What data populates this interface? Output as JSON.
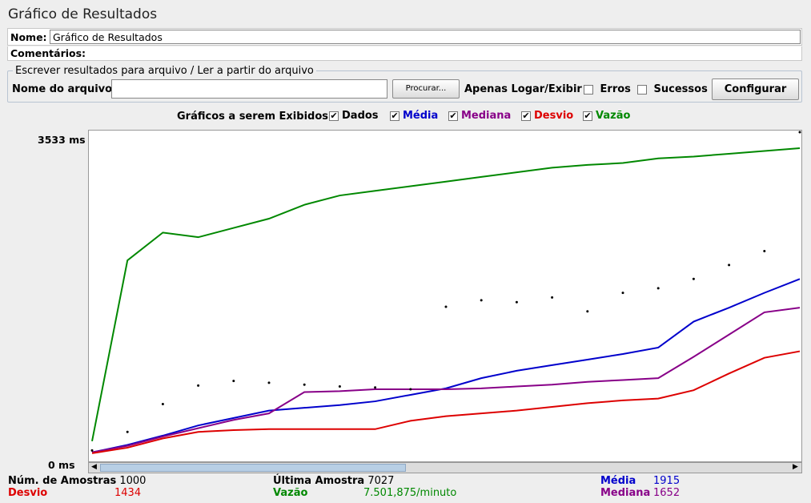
{
  "window": {
    "title": "Gráfico de Resultados"
  },
  "name_row": {
    "label": "Nome:",
    "value": "Gráfico de Resultados"
  },
  "comments_row": {
    "label": "Comentários:"
  },
  "file_section": {
    "legend": "Escrever resultados para arquivo / Ler a partir do arquivo",
    "filename_label": "Nome do arquivo",
    "filename_value": "",
    "browse_button": "Procurar...",
    "log_only_label": "Apenas Logar/Exibir",
    "errors_label": "Erros",
    "success_label": "Sucessos",
    "configure_button": "Configurar"
  },
  "graphs": {
    "label": "Gráficos a serem Exibidos",
    "options": [
      {
        "label": "Dados",
        "checked": true,
        "color": "#000000"
      },
      {
        "label": "Média",
        "checked": true,
        "color": "#0000cc"
      },
      {
        "label": "Mediana",
        "checked": true,
        "color": "#880088"
      },
      {
        "label": "Desvio",
        "checked": true,
        "color": "#dd0000"
      },
      {
        "label": "Vazão",
        "checked": true,
        "color": "#008800"
      }
    ]
  },
  "chart_data": {
    "type": "line",
    "y_max_label": "3533 ms",
    "y_min_label": "0 ms",
    "ylim": [
      0,
      3533
    ],
    "x": [
      0,
      50,
      100,
      150,
      200,
      250,
      300,
      350,
      400,
      450,
      500,
      550,
      600,
      650,
      700,
      750,
      800,
      850,
      900,
      950,
      1000
    ],
    "series": [
      {
        "name": "Média",
        "color": "#0000cc",
        "values": [
          80,
          160,
          260,
          370,
          450,
          530,
          560,
          590,
          630,
          700,
          770,
          880,
          960,
          1020,
          1080,
          1140,
          1210,
          1490,
          1640,
          1800,
          1950
        ]
      },
      {
        "name": "Mediana",
        "color": "#880088",
        "values": [
          80,
          150,
          250,
          340,
          430,
          500,
          730,
          740,
          760,
          760,
          760,
          770,
          790,
          810,
          840,
          860,
          880,
          1110,
          1350,
          1590,
          1640
        ]
      },
      {
        "name": "Desvio",
        "color": "#dd0000",
        "values": [
          70,
          130,
          230,
          300,
          320,
          330,
          330,
          330,
          330,
          420,
          470,
          500,
          530,
          570,
          610,
          640,
          660,
          750,
          930,
          1100,
          1170
        ]
      },
      {
        "name": "Vazão",
        "color": "#008800",
        "values": [
          200,
          2150,
          2450,
          2400,
          2500,
          2600,
          2750,
          2850,
          2900,
          2950,
          3000,
          3050,
          3100,
          3150,
          3180,
          3200,
          3250,
          3270,
          3300,
          3330,
          3360
        ]
      },
      {
        "name": "Dados",
        "color": "#000000",
        "values": [
          100,
          300,
          600,
          800,
          850,
          830,
          810,
          790,
          780,
          760,
          1650,
          1720,
          1700,
          1750,
          1600,
          1800,
          1850,
          1950,
          2100,
          2250,
          3533
        ]
      }
    ]
  },
  "stats": {
    "samples_label": "Núm. de Amostras",
    "samples_value": "1000",
    "last_label": "Última Amostra",
    "last_value": "7027",
    "avg_label": "Média",
    "avg_value": "1915",
    "dev_label": "Desvio",
    "dev_value": "1434",
    "throughput_label": "Vazão",
    "throughput_value": "7.501,875/minuto",
    "median_label": "Mediana",
    "median_value": "1652"
  }
}
